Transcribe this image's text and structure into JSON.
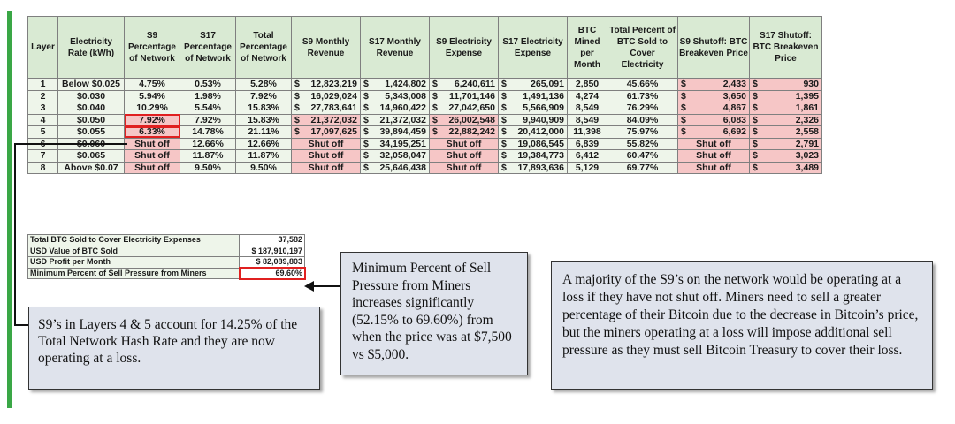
{
  "table": {
    "headers": [
      "Layer",
      "Electricity Rate (kWh)",
      "S9 Percentage of Network",
      "S17 Percentage of Network",
      "Total Percentage of Network",
      "S9 Monthly Revenue",
      "S17 Monthly Revenue",
      "S9 Electricity Expense",
      "S17 Electricity Expense",
      "BTC Mined per Month",
      "Total Percent of BTC Sold to Cover Electricity",
      "S9 Shutoff: BTC Breakeven Price",
      "S17 Shutoff: BTC Breakeven Price"
    ],
    "rows": [
      {
        "layer": "1",
        "rate": "Below $0.025",
        "s9_pct": "4.75%",
        "s17_pct": "0.53%",
        "total_pct": "5.28%",
        "s9_rev": "12,823,219",
        "s17_rev": "1,424,802",
        "s9_exp": "6,240,611",
        "s17_exp": "265,091",
        "btc": "2,850",
        "sold": "45.66%",
        "s9_be": "2,433",
        "s17_be": "930"
      },
      {
        "layer": "2",
        "rate": "$0.030",
        "s9_pct": "5.94%",
        "s17_pct": "1.98%",
        "total_pct": "7.92%",
        "s9_rev": "16,029,024",
        "s17_rev": "5,343,008",
        "s9_exp": "11,701,146",
        "s17_exp": "1,491,136",
        "btc": "4,274",
        "sold": "61.73%",
        "s9_be": "3,650",
        "s17_be": "1,395"
      },
      {
        "layer": "3",
        "rate": "$0.040",
        "s9_pct": "10.29%",
        "s17_pct": "5.54%",
        "total_pct": "15.83%",
        "s9_rev": "27,783,641",
        "s17_rev": "14,960,422",
        "s9_exp": "27,042,650",
        "s17_exp": "5,566,909",
        "btc": "8,549",
        "sold": "76.29%",
        "s9_be": "4,867",
        "s17_be": "1,861"
      },
      {
        "layer": "4",
        "rate": "$0.050",
        "s9_pct": "7.92%",
        "s17_pct": "7.92%",
        "total_pct": "15.83%",
        "s9_rev": "21,372,032",
        "s17_rev": "21,372,032",
        "s9_exp": "26,002,548",
        "s17_exp": "9,940,909",
        "btc": "8,549",
        "sold": "84.09%",
        "s9_be": "6,083",
        "s17_be": "2,326"
      },
      {
        "layer": "5",
        "rate": "$0.055",
        "s9_pct": "6.33%",
        "s17_pct": "14.78%",
        "total_pct": "21.11%",
        "s9_rev": "17,097,625",
        "s17_rev": "39,894,459",
        "s9_exp": "22,882,242",
        "s17_exp": "20,412,000",
        "btc": "11,398",
        "sold": "75.97%",
        "s9_be": "6,692",
        "s17_be": "2,558"
      },
      {
        "layer": "6",
        "rate": "$0.060",
        "s9_pct": "Shut off",
        "s17_pct": "12.66%",
        "total_pct": "12.66%",
        "s9_rev": "Shut off",
        "s17_rev": "34,195,251",
        "s9_exp": "Shut off",
        "s17_exp": "19,086,545",
        "btc": "6,839",
        "sold": "55.82%",
        "s9_be": "Shut off",
        "s17_be": "2,791"
      },
      {
        "layer": "7",
        "rate": "$0.065",
        "s9_pct": "Shut off",
        "s17_pct": "11.87%",
        "total_pct": "11.87%",
        "s9_rev": "Shut off",
        "s17_rev": "32,058,047",
        "s9_exp": "Shut off",
        "s17_exp": "19,384,773",
        "btc": "6,412",
        "sold": "60.47%",
        "s9_be": "Shut off",
        "s17_be": "3,023"
      },
      {
        "layer": "8",
        "rate": "Above $0.07",
        "s9_pct": "Shut off",
        "s17_pct": "9.50%",
        "total_pct": "9.50%",
        "s9_rev": "Shut off",
        "s17_rev": "25,646,438",
        "s9_exp": "Shut off",
        "s17_exp": "17,893,636",
        "btc": "5,129",
        "sold": "69.77%",
        "s9_be": "Shut off",
        "s17_be": "3,489"
      }
    ]
  },
  "summary": [
    {
      "label": "Total BTC Sold to Cover Electricity Expenses",
      "value": "37,582"
    },
    {
      "label": "USD Value of BTC Sold",
      "value": "$ 187,910,197"
    },
    {
      "label": "USD Profit per Month",
      "value": "$   82,089,803"
    },
    {
      "label": "Minimum Percent of Sell Pressure from Miners",
      "value": "69.60%"
    }
  ],
  "callouts": {
    "layers_note": "S9’s in Layers 4 & 5 account for 14.25% of the Total Network Hash Rate and they are now operating at a loss.",
    "sell_pressure_note": "Minimum Percent of Sell Pressure from Miners increases significantly (52.15% to 69.60%) from when the price was at $7,500 vs $5,000.",
    "majority_note": "A majority of the S9’s on the network would be operating at a loss if they have not shut off. Miners need to sell a greater percentage of their Bitcoin due to the decrease in Bitcoin’s price, but the miners operating at a loss will impose additional sell pressure as they must sell Bitcoin Treasury to cover their loss."
  },
  "colors": {
    "accent_bar": "#3aa746",
    "header_bg": "#d9ead3",
    "loss_highlight": "#f6c6c6",
    "loss_text": "#ff1a1a"
  }
}
